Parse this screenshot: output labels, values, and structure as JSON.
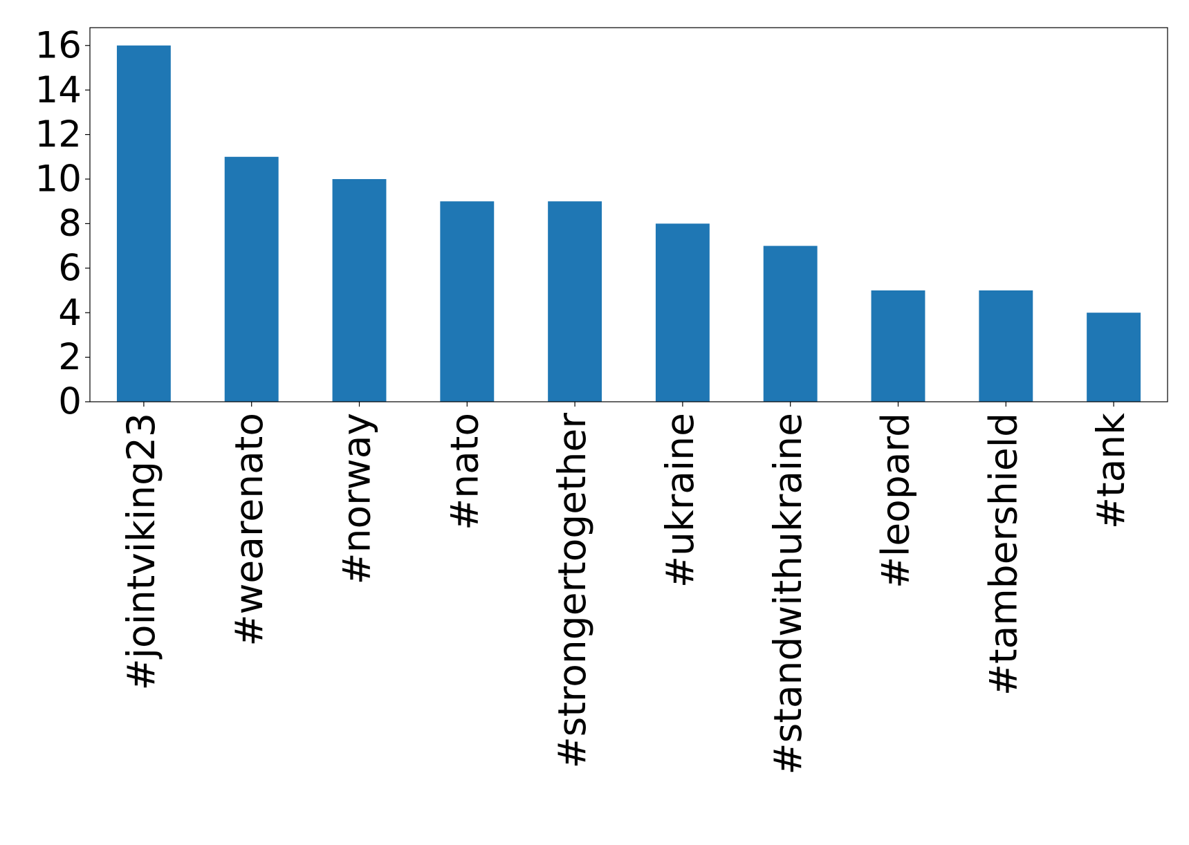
{
  "chart_data": {
    "type": "bar",
    "categories": [
      "#jointviking23",
      "#wearenato",
      "#norway",
      "#nato",
      "#strongertogether",
      "#ukraine",
      "#standwithukraine",
      "#leopard",
      "#tambershield",
      "#tank"
    ],
    "values": [
      16,
      11,
      10,
      9,
      9,
      8,
      7,
      5,
      5,
      4
    ],
    "color": "#1f77b4",
    "ylim": [
      0,
      16.8
    ],
    "yticks": [
      0,
      2,
      4,
      6,
      8,
      10,
      12,
      14,
      16
    ],
    "grid": false
  }
}
